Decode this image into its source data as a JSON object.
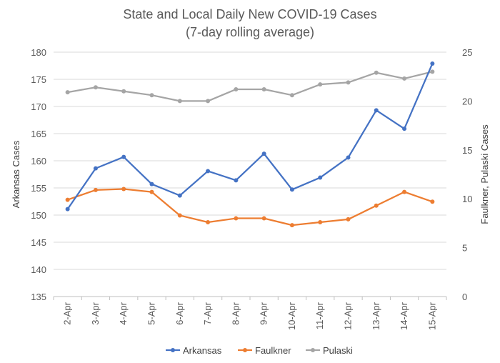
{
  "chart_data": {
    "type": "line",
    "title": "State and Local Daily New COVID-19 Cases",
    "subtitle": "(7-day rolling average)",
    "categories": [
      "2-Apr",
      "3-Apr",
      "4-Apr",
      "5-Apr",
      "6-Apr",
      "7-Apr",
      "8-Apr",
      "9-Apr",
      "10-Apr",
      "11-Apr",
      "12-Apr",
      "13-Apr",
      "14-Apr",
      "15-Apr"
    ],
    "ylabel_left": "Arkansas Cases",
    "ylabel_right": "Faulkner, Pulaski Cases",
    "ylim_left": [
      135,
      180
    ],
    "yticks_left": [
      135,
      140,
      145,
      150,
      155,
      160,
      165,
      170,
      175,
      180
    ],
    "ylim_right": [
      0,
      25
    ],
    "yticks_right": [
      0,
      5,
      10,
      15,
      20,
      25
    ],
    "grid": "horizontal",
    "legend_position": "bottom",
    "series": [
      {
        "name": "Arkansas",
        "axis": "left",
        "color": "#4472C4",
        "values": [
          151.1,
          158.6,
          160.7,
          155.7,
          153.6,
          158.1,
          156.4,
          161.3,
          154.7,
          156.9,
          160.6,
          169.3,
          165.9,
          177.9
        ]
      },
      {
        "name": "Faulkner",
        "axis": "right",
        "color": "#ED7D31",
        "values": [
          9.9,
          10.9,
          11.0,
          10.7,
          8.3,
          7.6,
          8.0,
          8.0,
          7.3,
          7.6,
          7.9,
          9.3,
          10.7,
          9.7
        ]
      },
      {
        "name": "Pulaski",
        "axis": "right",
        "color": "#A5A5A5",
        "values": [
          20.9,
          21.4,
          21.0,
          20.6,
          20.0,
          20.0,
          21.2,
          21.2,
          20.6,
          21.7,
          21.9,
          22.9,
          22.3,
          23.0
        ]
      }
    ]
  }
}
